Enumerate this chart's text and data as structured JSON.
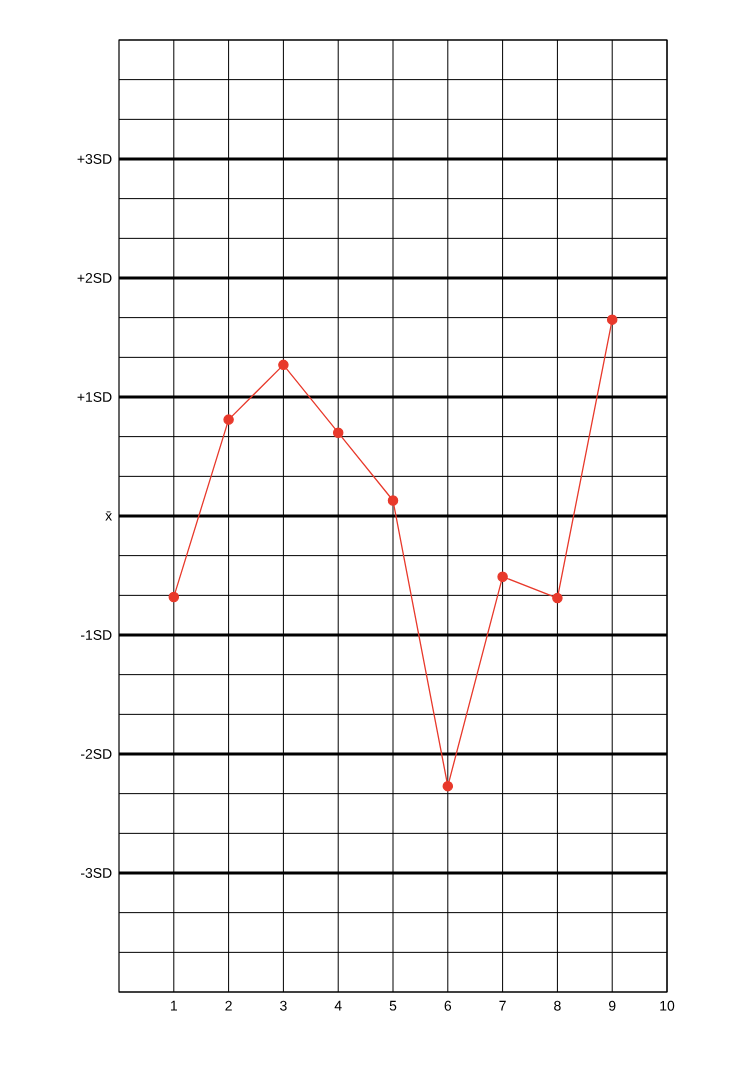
{
  "chart_data": {
    "type": "line",
    "x": [
      1,
      2,
      3,
      4,
      5,
      6,
      7,
      8,
      9
    ],
    "series": [
      {
        "color": "#e8392b",
        "values": [
          -0.68,
          0.81,
          1.27,
          0.7,
          0.13,
          -2.27,
          -0.51,
          -0.69,
          1.65
        ]
      }
    ],
    "xlim": [
      0,
      10
    ],
    "xticks": [
      1,
      2,
      3,
      4,
      5,
      6,
      7,
      8,
      9,
      10
    ],
    "ylim": [
      -4,
      4
    ],
    "yticks": [
      {
        "value": -4,
        "label": null
      },
      {
        "value": -3.667,
        "label": null
      },
      {
        "value": -3.333,
        "label": null
      },
      {
        "value": -3,
        "label": "-3SD"
      },
      {
        "value": -2.667,
        "label": null
      },
      {
        "value": -2.333,
        "label": null
      },
      {
        "value": -2,
        "label": "-2SD"
      },
      {
        "value": -1.667,
        "label": null
      },
      {
        "value": -1.333,
        "label": null
      },
      {
        "value": -1,
        "label": "-1SD"
      },
      {
        "value": -0.667,
        "label": null
      },
      {
        "value": -0.333,
        "label": null
      },
      {
        "value": 0,
        "label": "x̄"
      },
      {
        "value": 0.333,
        "label": null
      },
      {
        "value": 0.667,
        "label": null
      },
      {
        "value": 1,
        "label": "+1SD"
      },
      {
        "value": 1.333,
        "label": null
      },
      {
        "value": 1.667,
        "label": null
      },
      {
        "value": 2,
        "label": "+2SD"
      },
      {
        "value": 2.333,
        "label": null
      },
      {
        "value": 2.667,
        "label": null
      },
      {
        "value": 3,
        "label": "+3SD"
      },
      {
        "value": 3.333,
        "label": null
      },
      {
        "value": 3.667,
        "label": null
      },
      {
        "value": 4,
        "label": null
      }
    ],
    "grid": true,
    "marker": "circle",
    "line_style": "solid"
  }
}
